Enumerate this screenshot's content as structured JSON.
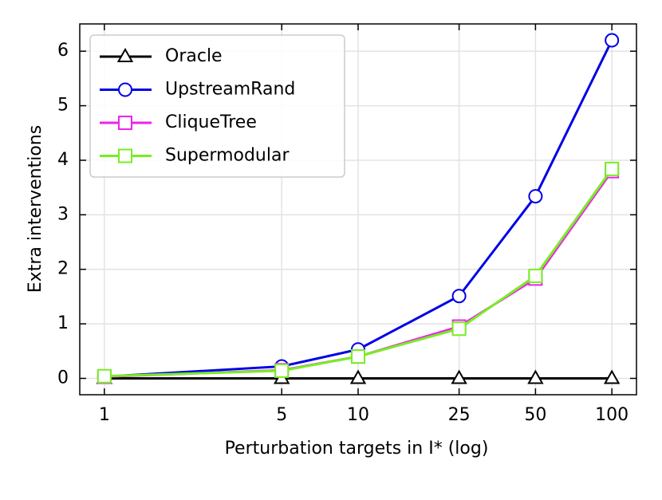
{
  "chart_data": {
    "type": "line",
    "x_label": "Perturbation targets in I* (log)",
    "y_label": "Extra interventions",
    "x": [
      1,
      5,
      10,
      25,
      50,
      100
    ],
    "xlim": [
      0.8,
      125
    ],
    "xticks": [
      1,
      5,
      10,
      25,
      50,
      100
    ],
    "xscale": "log",
    "ylim": [
      -0.3,
      6.5
    ],
    "yticks": [
      0,
      1,
      2,
      3,
      4,
      5,
      6
    ],
    "grid": true,
    "legend": "upper left",
    "series": [
      {
        "name": "Oracle",
        "color": "#000000",
        "marker": "triangle",
        "values": [
          0,
          0,
          0,
          0,
          0,
          0
        ]
      },
      {
        "name": "UpstreamRand",
        "color": "#0000e6",
        "marker": "circle",
        "values": [
          0.03,
          0.22,
          0.53,
          1.51,
          3.34,
          6.2
        ]
      },
      {
        "name": "CliqueTree",
        "color": "#ee22ee",
        "marker": "square",
        "values": [
          0.03,
          0.15,
          0.4,
          0.95,
          1.83,
          3.8
        ]
      },
      {
        "name": "Supermodular",
        "color": "#77ee22",
        "marker": "square",
        "values": [
          0.04,
          0.14,
          0.4,
          0.91,
          1.88,
          3.84
        ]
      }
    ]
  }
}
